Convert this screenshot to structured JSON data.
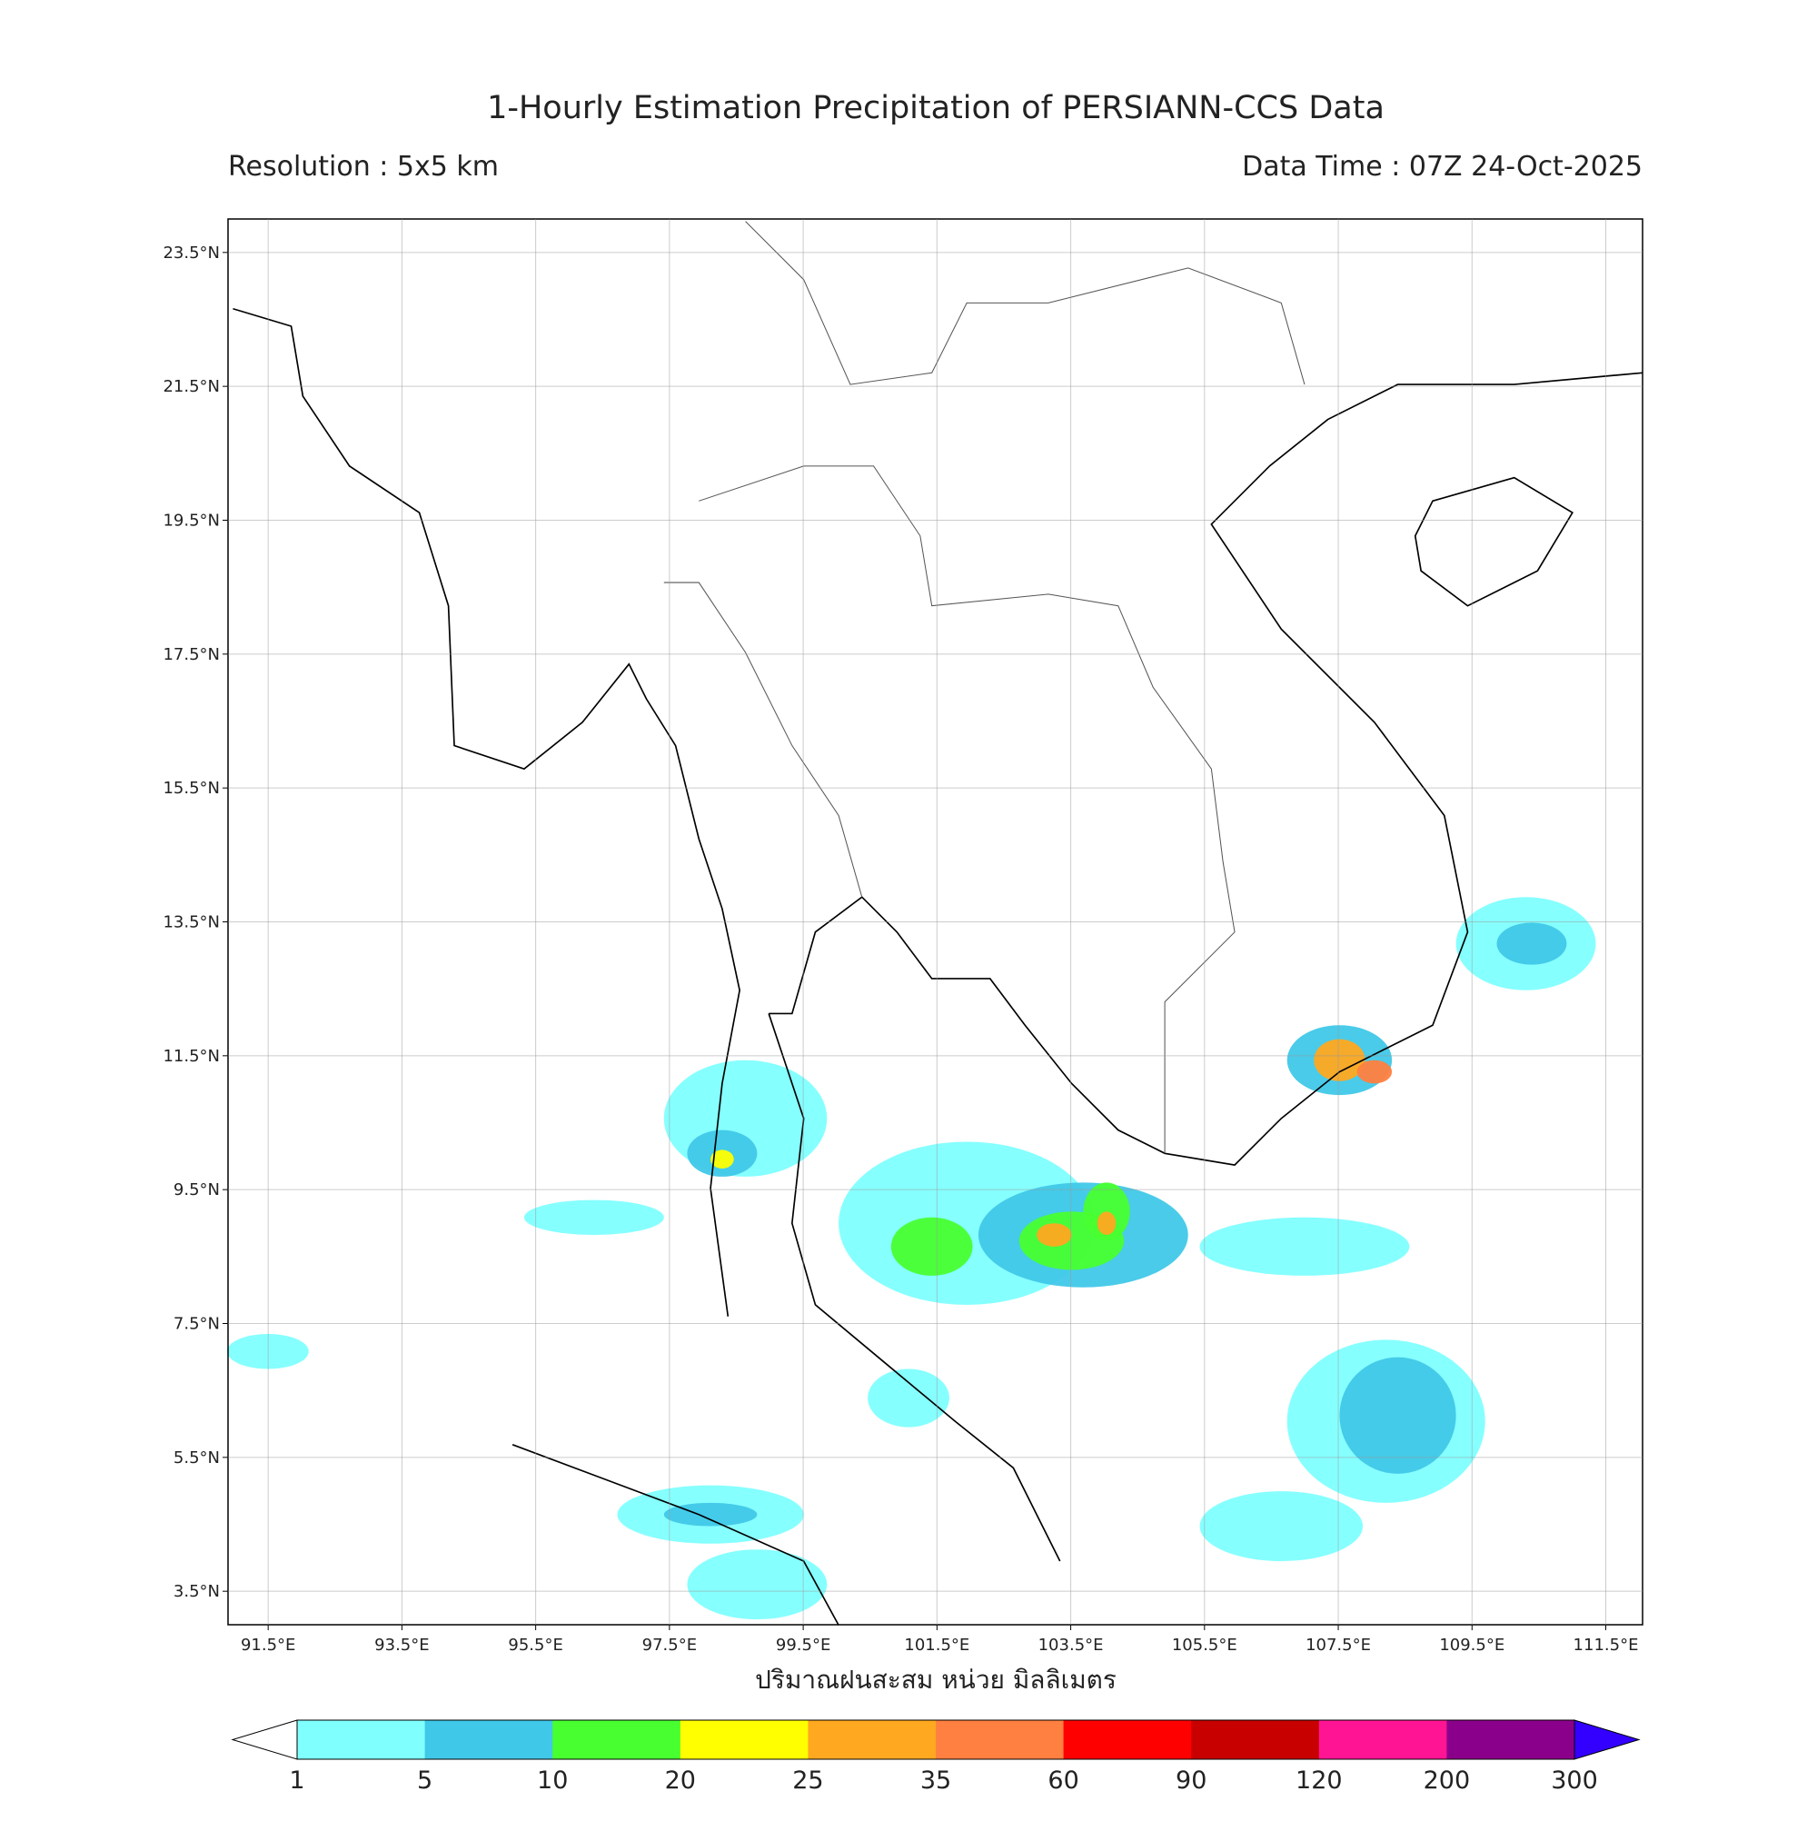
{
  "map_data": {
    "title": "1-Hourly Estimation Precipitation of PERSIANN-CCS Data",
    "resolution": "Resolution : 5x5 km",
    "data_time": "Data Time : 07Z 24-Oct-2025",
    "xlabel": "ปริมาณฝนสะสม หน่วย มิลลิเมตร",
    "lon_range": [
      90.9,
      112.05
    ],
    "lat_range": [
      3.0,
      24.0
    ],
    "lon_ticks": [
      {
        "value": 91.5,
        "label": "91.5°E"
      },
      {
        "value": 93.5,
        "label": "93.5°E"
      },
      {
        "value": 95.5,
        "label": "95.5°E"
      },
      {
        "value": 97.5,
        "label": "97.5°E"
      },
      {
        "value": 99.5,
        "label": "99.5°E"
      },
      {
        "value": 101.5,
        "label": "101.5°E"
      },
      {
        "value": 103.5,
        "label": "103.5°E"
      },
      {
        "value": 105.5,
        "label": "105.5°E"
      },
      {
        "value": 107.5,
        "label": "107.5°E"
      },
      {
        "value": 109.5,
        "label": "109.5°E"
      },
      {
        "value": 111.5,
        "label": "111.5°E"
      }
    ],
    "lat_ticks": [
      {
        "value": 23.5,
        "label": "23.5°N"
      },
      {
        "value": 21.5,
        "label": "21.5°N"
      },
      {
        "value": 19.5,
        "label": "19.5°N"
      },
      {
        "value": 17.5,
        "label": "17.5°N"
      },
      {
        "value": 15.5,
        "label": "15.5°N"
      },
      {
        "value": 13.5,
        "label": "13.5°N"
      },
      {
        "value": 11.5,
        "label": "11.5°N"
      },
      {
        "value": 9.5,
        "label": "9.5°N"
      },
      {
        "value": 7.5,
        "label": "7.5°N"
      },
      {
        "value": 5.5,
        "label": "5.5°N"
      },
      {
        "value": 3.5,
        "label": "3.5°N"
      }
    ],
    "colorbar": {
      "levels": [
        1,
        5,
        10,
        20,
        25,
        35,
        60,
        90,
        120,
        200,
        300
      ],
      "colors": [
        "#80ffff",
        "#40c8e8",
        "#48ff30",
        "#ffff00",
        "#ffa820",
        "#ff8040",
        "#ff0000",
        "#c80000",
        "#ff1493",
        "#8b008b",
        "#3300ff"
      ]
    }
  }
}
